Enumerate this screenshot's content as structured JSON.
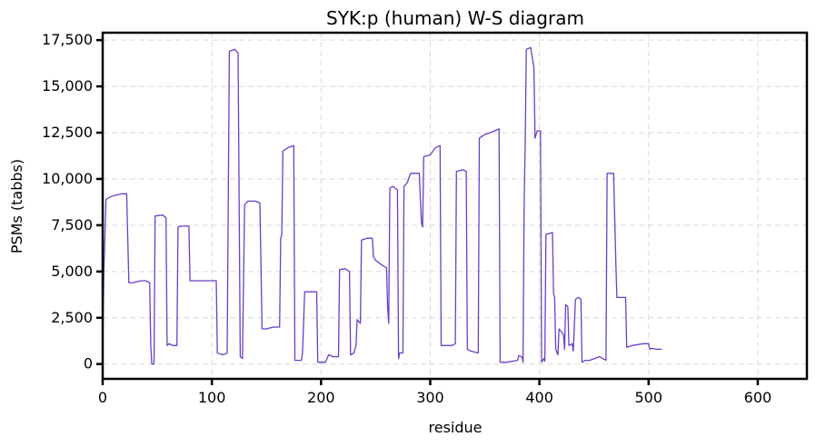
{
  "chart_data": {
    "type": "line",
    "title": "SYK:p (human) W-S diagram",
    "xlabel": "residue",
    "ylabel": "PSMs (tabbs)",
    "xlim": [
      0,
      645
    ],
    "ylim": [
      -800,
      17900
    ],
    "x_ticks": [
      0,
      100,
      200,
      300,
      400,
      500,
      600
    ],
    "y_ticks": [
      0,
      2500,
      5000,
      7500,
      10000,
      12500,
      15000,
      17500
    ],
    "x_tick_labels": [
      "0",
      "100",
      "200",
      "300",
      "400",
      "500",
      "600"
    ],
    "y_tick_labels": [
      "0",
      "2,500",
      "5,000",
      "7,500",
      "10,000",
      "12,500",
      "15,000",
      "17,500"
    ],
    "grid": true,
    "series": [
      {
        "color": "#6a3fc8",
        "points": [
          [
            0,
            500
          ],
          [
            1,
            4800
          ],
          [
            3,
            8900
          ],
          [
            6,
            9000
          ],
          [
            10,
            9100
          ],
          [
            18,
            9200
          ],
          [
            22,
            9200
          ],
          [
            24,
            4400
          ],
          [
            28,
            4400
          ],
          [
            35,
            4500
          ],
          [
            39,
            4500
          ],
          [
            43,
            4400
          ],
          [
            44,
            1000
          ],
          [
            45,
            0
          ],
          [
            47,
            0
          ],
          [
            48,
            8000
          ],
          [
            55,
            8050
          ],
          [
            58,
            7900
          ],
          [
            59,
            1000
          ],
          [
            61,
            1100
          ],
          [
            64,
            1000
          ],
          [
            68,
            1000
          ],
          [
            69,
            7400
          ],
          [
            72,
            7450
          ],
          [
            79,
            7450
          ],
          [
            80,
            4500
          ],
          [
            85,
            4500
          ],
          [
            95,
            4500
          ],
          [
            104,
            4500
          ],
          [
            105,
            600
          ],
          [
            110,
            500
          ],
          [
            114,
            600
          ],
          [
            116,
            16900
          ],
          [
            121,
            17000
          ],
          [
            124,
            16800
          ],
          [
            126,
            400
          ],
          [
            128,
            300
          ],
          [
            130,
            8600
          ],
          [
            133,
            8800
          ],
          [
            140,
            8800
          ],
          [
            144,
            8700
          ],
          [
            146,
            1900
          ],
          [
            150,
            1900
          ],
          [
            153,
            1950
          ],
          [
            157,
            2000
          ],
          [
            162,
            2000
          ],
          [
            163,
            6800
          ],
          [
            164,
            7000
          ],
          [
            165,
            11500
          ],
          [
            170,
            11700
          ],
          [
            175,
            11800
          ],
          [
            176,
            200
          ],
          [
            180,
            200
          ],
          [
            182,
            200
          ],
          [
            183,
            600
          ],
          [
            185,
            3900
          ],
          [
            190,
            3900
          ],
          [
            196,
            3900
          ],
          [
            197,
            100
          ],
          [
            200,
            100
          ],
          [
            204,
            100
          ],
          [
            207,
            500
          ],
          [
            211,
            400
          ],
          [
            216,
            400
          ],
          [
            217,
            5100
          ],
          [
            222,
            5150
          ],
          [
            226,
            5000
          ],
          [
            227,
            500
          ],
          [
            230,
            600
          ],
          [
            232,
            1000
          ],
          [
            233,
            2400
          ],
          [
            236,
            2200
          ],
          [
            237,
            6700
          ],
          [
            242,
            6800
          ],
          [
            247,
            6800
          ],
          [
            248,
            5800
          ],
          [
            250,
            5600
          ],
          [
            257,
            5300
          ],
          [
            260,
            5200
          ],
          [
            261,
            3000
          ],
          [
            262,
            2200
          ],
          [
            263,
            9500
          ],
          [
            266,
            9600
          ],
          [
            270,
            9400
          ],
          [
            271,
            300
          ],
          [
            272,
            600
          ],
          [
            275,
            600
          ],
          [
            276,
            9600
          ],
          [
            279,
            9800
          ],
          [
            282,
            10300
          ],
          [
            290,
            10300
          ],
          [
            291,
            8800
          ],
          [
            292,
            7600
          ],
          [
            293,
            7400
          ],
          [
            294,
            11200
          ],
          [
            300,
            11300
          ],
          [
            305,
            11700
          ],
          [
            309,
            11800
          ],
          [
            310,
            1000
          ],
          [
            315,
            1000
          ],
          [
            320,
            1000
          ],
          [
            323,
            1100
          ],
          [
            324,
            10400
          ],
          [
            330,
            10500
          ],
          [
            333,
            10400
          ],
          [
            334,
            800
          ],
          [
            337,
            700
          ],
          [
            344,
            600
          ],
          [
            345,
            12200
          ],
          [
            350,
            12400
          ],
          [
            355,
            12500
          ],
          [
            363,
            12700
          ],
          [
            364,
            100
          ],
          [
            370,
            100
          ],
          [
            380,
            200
          ],
          [
            381,
            450
          ],
          [
            384,
            400
          ],
          [
            385,
            100
          ],
          [
            386,
            8600
          ],
          [
            387,
            12000
          ],
          [
            388,
            17000
          ],
          [
            392,
            17100
          ],
          [
            395,
            16000
          ],
          [
            396,
            12200
          ],
          [
            398,
            12600
          ],
          [
            401,
            12600
          ],
          [
            402,
            100
          ],
          [
            404,
            300
          ],
          [
            405,
            150
          ],
          [
            406,
            7000
          ],
          [
            412,
            7100
          ],
          [
            413,
            3800
          ],
          [
            414,
            3600
          ],
          [
            415,
            800
          ],
          [
            417,
            500
          ],
          [
            418,
            1900
          ],
          [
            422,
            1600
          ],
          [
            423,
            800
          ],
          [
            424,
            3200
          ],
          [
            426,
            3100
          ],
          [
            427,
            1000
          ],
          [
            430,
            1100
          ],
          [
            431,
            700
          ],
          [
            433,
            3500
          ],
          [
            436,
            3600
          ],
          [
            438,
            3500
          ],
          [
            439,
            100
          ],
          [
            442,
            200
          ],
          [
            446,
            200
          ],
          [
            455,
            400
          ],
          [
            458,
            300
          ],
          [
            461,
            200
          ],
          [
            462,
            10300
          ],
          [
            468,
            10300
          ],
          [
            470,
            5500
          ],
          [
            471,
            3600
          ],
          [
            474,
            3600
          ],
          [
            479,
            3600
          ],
          [
            480,
            900
          ],
          [
            485,
            1000
          ],
          [
            495,
            1100
          ],
          [
            500,
            1100
          ],
          [
            501,
            800
          ],
          [
            503,
            850
          ],
          [
            507,
            800
          ],
          [
            512,
            800
          ]
        ]
      }
    ]
  }
}
